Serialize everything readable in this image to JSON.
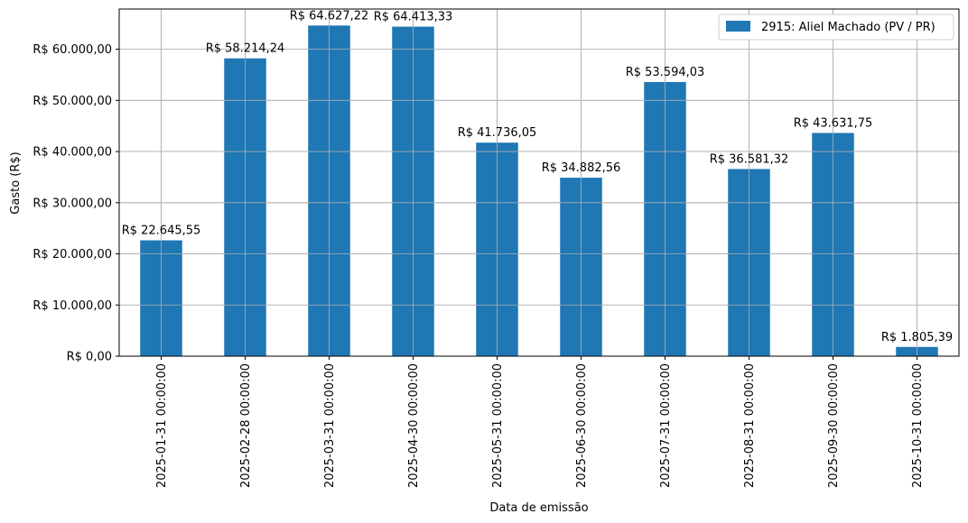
{
  "chart_data": {
    "type": "bar",
    "xlabel": "Data de emissão",
    "ylabel": "Gasto (R$)",
    "categories": [
      "2025-01-31 00:00:00",
      "2025-02-28 00:00:00",
      "2025-03-31 00:00:00",
      "2025-04-30 00:00:00",
      "2025-05-31 00:00:00",
      "2025-06-30 00:00:00",
      "2025-07-31 00:00:00",
      "2025-08-31 00:00:00",
      "2025-09-30 00:00:00",
      "2025-10-31 00:00:00"
    ],
    "series": [
      {
        "name": "2915: Aliel Machado (PV / PR)",
        "color": "#1f77b4",
        "values": [
          22645.55,
          58214.24,
          64627.22,
          64413.33,
          41736.05,
          34882.56,
          53594.03,
          36581.32,
          43631.75,
          1805.39
        ],
        "data_labels": [
          "R$ 22.645,55",
          "R$ 58.214,24",
          "R$ 64.627,22",
          "R$ 64.413,33",
          "R$ 41.736,05",
          "R$ 34.882,56",
          "R$ 53.594,03",
          "R$ 36.581,32",
          "R$ 43.631,75",
          "R$ 1.805,39"
        ]
      }
    ],
    "ylim": [
      0,
      67859
    ],
    "yticks": [
      0,
      10000,
      20000,
      30000,
      40000,
      50000,
      60000
    ],
    "ytick_labels": [
      "R$ 0,00",
      "R$ 10.000,00",
      "R$ 20.000,00",
      "R$ 30.000,00",
      "R$ 40.000,00",
      "R$ 50.000,00",
      "R$ 60.000,00"
    ],
    "grid": true,
    "legend_position": "top-right"
  }
}
